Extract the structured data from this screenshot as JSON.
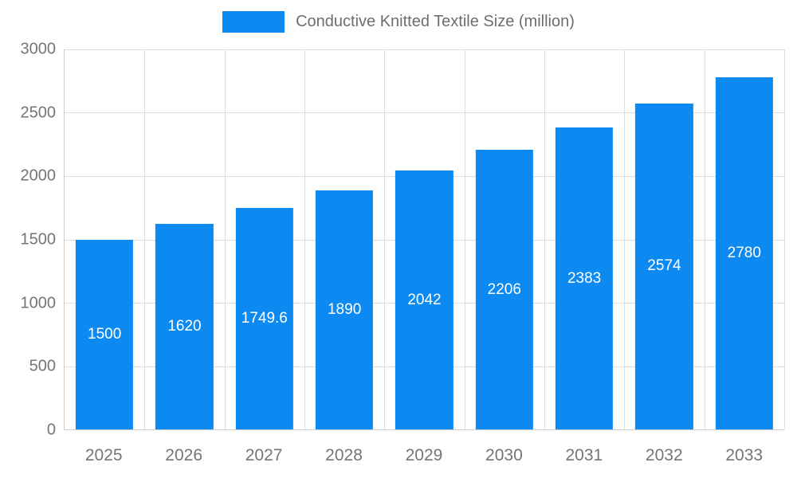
{
  "chart_data": {
    "type": "bar",
    "title": "Conductive Knitted Textile Size (million)",
    "categories": [
      "2025",
      "2026",
      "2027",
      "2028",
      "2029",
      "2030",
      "2031",
      "2032",
      "2033"
    ],
    "values": [
      1500,
      1620,
      1749.6,
      1890,
      2042,
      2206,
      2383,
      2574,
      2780
    ],
    "value_labels": [
      "1500",
      "1620",
      "1749.6",
      "1890",
      "2042",
      "2206",
      "2383",
      "2574",
      "2780"
    ],
    "xlabel": "",
    "ylabel": "",
    "ylim": [
      0,
      3000
    ],
    "yticks": [
      0,
      500,
      1000,
      1500,
      2000,
      2500,
      3000
    ],
    "grid": true,
    "legend_position": "top",
    "colors": {
      "bar": "#0d8af2",
      "value_label": "#ffffff",
      "axis_text": "#757575",
      "legend_text": "#6d6d6d",
      "gridline": "#dddddd",
      "axis_line": "#cccccc"
    }
  }
}
